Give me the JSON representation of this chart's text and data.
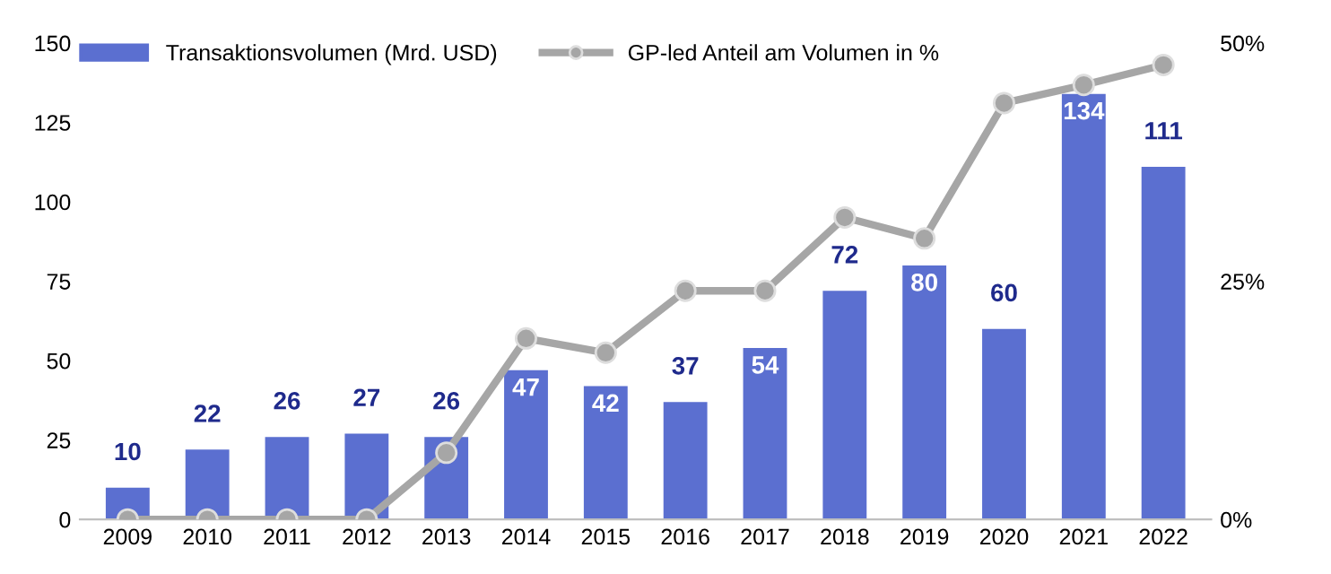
{
  "chart_data": {
    "type": "bar",
    "categories": [
      "2009",
      "2010",
      "2011",
      "2012",
      "2013",
      "2014",
      "2015",
      "2016",
      "2017",
      "2018",
      "2019",
      "2020",
      "2021",
      "2022"
    ],
    "series": [
      {
        "name": "Transaktionsvolumen (Mrd. USD)",
        "color": "#5b6fd0",
        "values": [
          10,
          22,
          26,
          27,
          26,
          47,
          42,
          37,
          54,
          72,
          80,
          60,
          134,
          111
        ],
        "data_labels": true
      },
      {
        "name": "GP-led Anteil am Volumen in %",
        "type": "line",
        "axis": "y2",
        "color": "#a6a6a6",
        "marker": "circle",
        "line_style": "solid",
        "values": [
          0,
          0,
          0,
          0,
          7,
          19,
          17.5,
          24,
          24,
          31.7,
          29.5,
          43.7,
          45.6,
          47.7
        ]
      }
    ],
    "ylim": [
      0,
      150
    ],
    "yticks": [
      0,
      25,
      50,
      75,
      100,
      125,
      150
    ],
    "y2lim": [
      0,
      50
    ],
    "y2ticks": [
      {
        "value": 0,
        "label": "0%"
      },
      {
        "value": 25,
        "label": "25%"
      },
      {
        "value": 50,
        "label": "50%"
      }
    ],
    "grid": false,
    "legend": "top"
  }
}
